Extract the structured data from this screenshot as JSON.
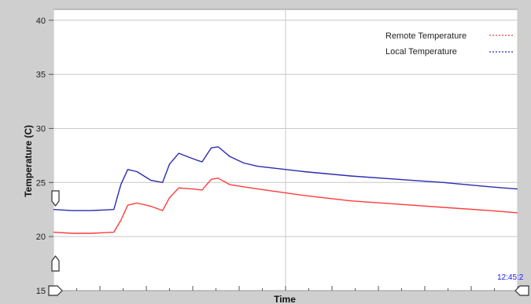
{
  "chart_data": {
    "type": "line",
    "title": "",
    "xlabel": "Time",
    "ylabel": "Temperature (C)",
    "ylim": [
      15,
      41
    ],
    "xlim": [
      0,
      100
    ],
    "yticks": [
      15,
      20,
      25,
      30,
      35,
      40
    ],
    "grid": true,
    "legend_position": "top-right",
    "timestamp": "12:45:2",
    "series": [
      {
        "name": "Remote Temperature",
        "color": "#ff3b3b",
        "x": [
          0,
          4,
          8,
          13,
          14.5,
          16,
          18,
          21,
          23.5,
          25,
          27,
          30,
          32,
          34,
          35.5,
          38,
          41,
          44,
          54,
          64,
          74,
          84,
          94,
          100
        ],
        "values": [
          20.4,
          20.3,
          20.3,
          20.4,
          21.5,
          22.9,
          23.1,
          22.8,
          22.4,
          23.6,
          24.5,
          24.4,
          24.3,
          25.3,
          25.4,
          24.8,
          24.6,
          24.4,
          23.8,
          23.3,
          23.0,
          22.7,
          22.4,
          22.2
        ]
      },
      {
        "name": "Local Temperature",
        "color": "#2b2bb0",
        "x": [
          0,
          4,
          8,
          13,
          14.5,
          16,
          18,
          21,
          23.5,
          25,
          27,
          30,
          32,
          34,
          35.5,
          38,
          41,
          44,
          54,
          64,
          74,
          84,
          94,
          100
        ],
        "values": [
          22.5,
          22.4,
          22.4,
          22.5,
          24.8,
          26.2,
          26.0,
          25.2,
          25.0,
          26.7,
          27.7,
          27.2,
          26.9,
          28.2,
          28.3,
          27.4,
          26.8,
          26.5,
          26.0,
          25.6,
          25.3,
          25.0,
          24.6,
          24.4
        ]
      }
    ]
  }
}
